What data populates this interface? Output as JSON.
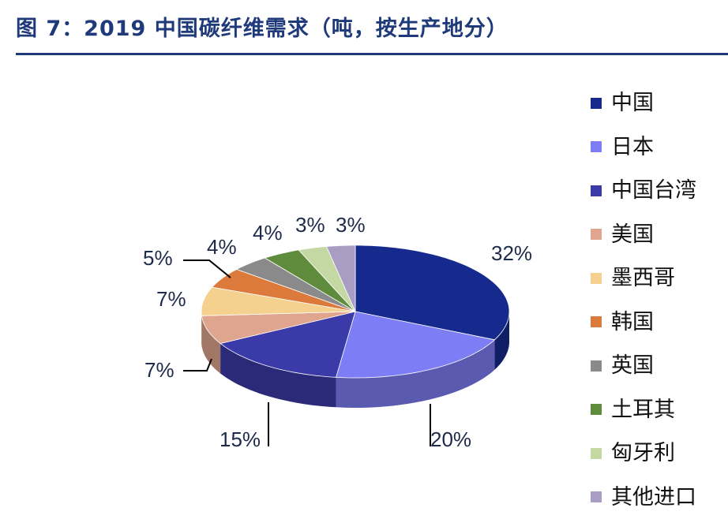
{
  "header": {
    "title": "图 7：2019 中国碳纤维需求（吨，按生产地分）"
  },
  "chart_data": {
    "type": "pie",
    "title": "图 7：2019 中国碳纤维需求（吨，按生产地分）",
    "value_unit": "%",
    "legend_position": "right",
    "categories": [
      "中国",
      "日本",
      "中国台湾",
      "美国",
      "墨西哥",
      "韩国",
      "英国",
      "土耳其",
      "匈牙利",
      "其他进口"
    ],
    "values": [
      32,
      20,
      15,
      7,
      7,
      5,
      4,
      4,
      3,
      3
    ],
    "labels": [
      "32%",
      "20%",
      "15%",
      "7%",
      "7%",
      "5%",
      "4%",
      "4%",
      "3%",
      "3%"
    ],
    "colors": [
      "#162a8e",
      "#7d7ef5",
      "#3a3aa8",
      "#e0a58f",
      "#f5d190",
      "#dc7a3c",
      "#8a8a8a",
      "#5f8b3c",
      "#c4d8a4",
      "#a99dc3"
    ]
  }
}
